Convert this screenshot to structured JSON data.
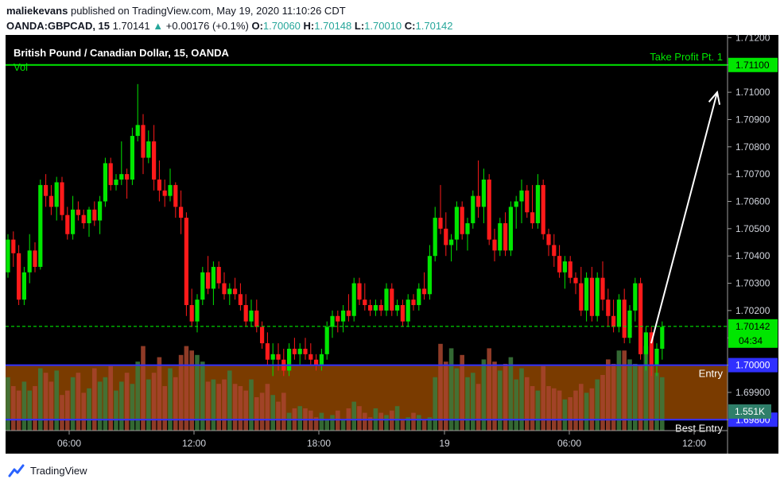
{
  "header": {
    "user": "maliekevans",
    "published_text": "published on TradingView.com, May 19, 2020 11:10:26 CDT",
    "symbol": "OANDA:GBPCAD, 15",
    "price": "1.70141",
    "change": "+0.00176 (+0.1%)",
    "o_label": "O:",
    "o_value": "1.70060",
    "h_label": "H:",
    "h_value": "1.70148",
    "l_label": "L:",
    "l_value": "1.70010",
    "c_label": "C:",
    "c_value": "1.70142"
  },
  "footer": {
    "brand": "TradingView"
  },
  "chart_data": {
    "type": "candlestick",
    "title": "British Pound / Canadian Dollar, 15, OANDA",
    "volume_label": "Vol",
    "x_ticks": [
      "06:00",
      "12:00",
      "18:00",
      "19",
      "06:00",
      "12:00"
    ],
    "y_ticks": [
      "1.71200",
      "1.71100",
      "1.71000",
      "1.70900",
      "1.70800",
      "1.70700",
      "1.70600",
      "1.70500",
      "1.70400",
      "1.70300",
      "1.70200",
      "1.70100",
      "1.70000",
      "1.69900",
      "1.69800"
    ],
    "ylim": [
      1.6976,
      1.7121
    ],
    "levels": [
      {
        "label": "Take Profit Pt. 1",
        "price": 1.711,
        "price_label": "1.71100",
        "color": "#00e600"
      },
      {
        "label": "Entry",
        "price": 1.7,
        "price_label": "1.70000",
        "color": "#3030ff"
      },
      {
        "label": "Best Entry",
        "price": 1.698,
        "price_label": "1.69800",
        "color": "#3030ff"
      }
    ],
    "current_price": {
      "value": 1.70142,
      "label": "1.70142",
      "countdown": "04:34",
      "color": "#00e600"
    },
    "volume_value_label": "1.551K",
    "zone_color": "#7a3b00",
    "up_color": "#00e600",
    "down_color": "#ff1a1a",
    "candles_ohlc": [
      [
        1.7034,
        1.7048,
        1.7032,
        1.7046
      ],
      [
        1.7046,
        1.7049,
        1.7036,
        1.7041
      ],
      [
        1.7041,
        1.7044,
        1.7022,
        1.7024
      ],
      [
        1.7024,
        1.7036,
        1.7022,
        1.7034
      ],
      [
        1.7034,
        1.7048,
        1.703,
        1.7042
      ],
      [
        1.7042,
        1.7045,
        1.7034,
        1.7036
      ],
      [
        1.7036,
        1.7068,
        1.7035,
        1.7066
      ],
      [
        1.7066,
        1.707,
        1.7058,
        1.7062
      ],
      [
        1.7062,
        1.7066,
        1.7055,
        1.7058
      ],
      [
        1.7058,
        1.7069,
        1.7053,
        1.7067
      ],
      [
        1.7067,
        1.7069,
        1.7053,
        1.7055
      ],
      [
        1.7055,
        1.7058,
        1.7046,
        1.7048
      ],
      [
        1.7048,
        1.7062,
        1.7046,
        1.7057
      ],
      [
        1.7057,
        1.706,
        1.7053,
        1.7055
      ],
      [
        1.7055,
        1.7057,
        1.705,
        1.7052
      ],
      [
        1.7052,
        1.7058,
        1.7047,
        1.7057
      ],
      [
        1.7057,
        1.706,
        1.7051,
        1.7053
      ],
      [
        1.7053,
        1.7062,
        1.7048,
        1.706
      ],
      [
        1.706,
        1.7076,
        1.7058,
        1.7074
      ],
      [
        1.7074,
        1.7076,
        1.7064,
        1.7066
      ],
      [
        1.7066,
        1.707,
        1.7064,
        1.7068
      ],
      [
        1.7068,
        1.7082,
        1.7066,
        1.707
      ],
      [
        1.707,
        1.7072,
        1.7061,
        1.7068
      ],
      [
        1.7068,
        1.7087,
        1.7066,
        1.7084
      ],
      [
        1.7084,
        1.7103,
        1.7082,
        1.7088
      ],
      [
        1.7088,
        1.7092,
        1.707,
        1.7076
      ],
      [
        1.7076,
        1.7086,
        1.7074,
        1.7082
      ],
      [
        1.7082,
        1.7088,
        1.7064,
        1.7068
      ],
      [
        1.7068,
        1.7075,
        1.706,
        1.7064
      ],
      [
        1.7064,
        1.7068,
        1.7058,
        1.7062
      ],
      [
        1.7062,
        1.7072,
        1.706,
        1.7066
      ],
      [
        1.7066,
        1.7067,
        1.7054,
        1.7058
      ],
      [
        1.7058,
        1.7064,
        1.7048,
        1.7054
      ],
      [
        1.7054,
        1.7056,
        1.7018,
        1.7022
      ],
      [
        1.7022,
        1.7028,
        1.7014,
        1.7016
      ],
      [
        1.7016,
        1.7026,
        1.7012,
        1.7024
      ],
      [
        1.7024,
        1.7036,
        1.7022,
        1.7034
      ],
      [
        1.7034,
        1.704,
        1.7026,
        1.7028
      ],
      [
        1.7028,
        1.7038,
        1.7022,
        1.7036
      ],
      [
        1.7036,
        1.7038,
        1.7028,
        1.703
      ],
      [
        1.703,
        1.7034,
        1.7024,
        1.7026
      ],
      [
        1.7026,
        1.703,
        1.7022,
        1.7028
      ],
      [
        1.7028,
        1.7032,
        1.7024,
        1.7026
      ],
      [
        1.7026,
        1.703,
        1.702,
        1.7022
      ],
      [
        1.7022,
        1.7026,
        1.7014,
        1.7016
      ],
      [
        1.7016,
        1.7024,
        1.7014,
        1.702
      ],
      [
        1.702,
        1.7024,
        1.7012,
        1.7014
      ],
      [
        1.7014,
        1.7016,
        1.7006,
        1.7008
      ],
      [
        1.7008,
        1.7012,
        1.7,
        1.7002
      ],
      [
        1.7002,
        1.7008,
        1.6996,
        1.7004
      ],
      [
        1.7004,
        1.7008,
        1.6998,
        1.7002
      ],
      [
        1.7002,
        1.7006,
        1.6996,
        1.6998
      ],
      [
        1.6998,
        1.7008,
        1.6996,
        1.7006
      ],
      [
        1.7006,
        1.701,
        1.7002,
        1.7004
      ],
      [
        1.7004,
        1.7008,
        1.7,
        1.7006
      ],
      [
        1.7006,
        1.701,
        1.7002,
        1.7004
      ],
      [
        1.7004,
        1.7008,
        1.7,
        1.7002
      ],
      [
        1.7002,
        1.7004,
        1.6998,
        1.7
      ],
      [
        1.7,
        1.7006,
        1.6998,
        1.7004
      ],
      [
        1.7004,
        1.7016,
        1.7002,
        1.7014
      ],
      [
        1.7014,
        1.702,
        1.701,
        1.7018
      ],
      [
        1.7018,
        1.702,
        1.7012,
        1.7016
      ],
      [
        1.7016,
        1.7022,
        1.7012,
        1.702
      ],
      [
        1.702,
        1.7026,
        1.7016,
        1.7018
      ],
      [
        1.7018,
        1.7032,
        1.7016,
        1.703
      ],
      [
        1.703,
        1.7032,
        1.7022,
        1.7024
      ],
      [
        1.7024,
        1.703,
        1.702,
        1.7022
      ],
      [
        1.7022,
        1.7024,
        1.7018,
        1.702
      ],
      [
        1.702,
        1.7024,
        1.7018,
        1.7022
      ],
      [
        1.7022,
        1.7024,
        1.7018,
        1.702
      ],
      [
        1.702,
        1.703,
        1.7018,
        1.7028
      ],
      [
        1.7028,
        1.703,
        1.7018,
        1.702
      ],
      [
        1.702,
        1.7024,
        1.7018,
        1.7022
      ],
      [
        1.7022,
        1.7024,
        1.7014,
        1.7016
      ],
      [
        1.7016,
        1.7026,
        1.7014,
        1.7024
      ],
      [
        1.7024,
        1.7026,
        1.702,
        1.7022
      ],
      [
        1.7022,
        1.703,
        1.702,
        1.7028
      ],
      [
        1.7028,
        1.7034,
        1.7024,
        1.7026
      ],
      [
        1.7026,
        1.7044,
        1.7024,
        1.704
      ],
      [
        1.704,
        1.7058,
        1.7038,
        1.7054
      ],
      [
        1.7054,
        1.7066,
        1.7048,
        1.705
      ],
      [
        1.705,
        1.7056,
        1.704,
        1.7044
      ],
      [
        1.7044,
        1.7048,
        1.7038,
        1.7046
      ],
      [
        1.7046,
        1.706,
        1.7042,
        1.7058
      ],
      [
        1.7058,
        1.706,
        1.7046,
        1.7048
      ],
      [
        1.7048,
        1.7054,
        1.7042,
        1.7052
      ],
      [
        1.7052,
        1.7064,
        1.705,
        1.7062
      ],
      [
        1.7062,
        1.7075,
        1.7054,
        1.7058
      ],
      [
        1.7058,
        1.7072,
        1.7052,
        1.7068
      ],
      [
        1.7068,
        1.707,
        1.7044,
        1.7046
      ],
      [
        1.7046,
        1.705,
        1.7038,
        1.7042
      ],
      [
        1.7042,
        1.7054,
        1.704,
        1.7052
      ],
      [
        1.7052,
        1.7056,
        1.704,
        1.7042
      ],
      [
        1.7042,
        1.706,
        1.704,
        1.7058
      ],
      [
        1.7058,
        1.7062,
        1.705,
        1.706
      ],
      [
        1.706,
        1.7068,
        1.7052,
        1.7064
      ],
      [
        1.7064,
        1.7066,
        1.7054,
        1.7056
      ],
      [
        1.7056,
        1.7066,
        1.705,
        1.7052
      ],
      [
        1.7052,
        1.707,
        1.705,
        1.7066
      ],
      [
        1.7066,
        1.7068,
        1.7046,
        1.7048
      ],
      [
        1.7048,
        1.705,
        1.704,
        1.7044
      ],
      [
        1.7044,
        1.7048,
        1.7036,
        1.704
      ],
      [
        1.704,
        1.7044,
        1.7032,
        1.7034
      ],
      [
        1.7034,
        1.704,
        1.7028,
        1.7038
      ],
      [
        1.7038,
        1.704,
        1.703,
        1.7032
      ],
      [
        1.7032,
        1.7034,
        1.7026,
        1.703
      ],
      [
        1.703,
        1.7036,
        1.7018,
        1.702
      ],
      [
        1.702,
        1.7034,
        1.7016,
        1.7032
      ],
      [
        1.7032,
        1.7036,
        1.7016,
        1.7018
      ],
      [
        1.7018,
        1.7034,
        1.7016,
        1.7032
      ],
      [
        1.7032,
        1.7038,
        1.702,
        1.7024
      ],
      [
        1.7024,
        1.7028,
        1.7014,
        1.7018
      ],
      [
        1.7018,
        1.7024,
        1.7012,
        1.7014
      ],
      [
        1.7014,
        1.7026,
        1.7012,
        1.7024
      ],
      [
        1.7024,
        1.7028,
        1.7008,
        1.701
      ],
      [
        1.701,
        1.7022,
        1.7008,
        1.702
      ],
      [
        1.702,
        1.7032,
        1.7016,
        1.703
      ],
      [
        1.703,
        1.7032,
        1.7002,
        1.7004
      ],
      [
        1.7004,
        1.7014,
        1.6998,
        1.7012
      ],
      [
        1.7012,
        1.7014,
        1.6996,
        1.7
      ],
      [
        1.7,
        1.7008,
        1.6996,
        1.7006
      ],
      [
        1.7006,
        1.7016,
        1.7002,
        1.7014
      ]
    ],
    "volumes": [
      48,
      40,
      36,
      44,
      36,
      40,
      56,
      52,
      44,
      54,
      32,
      36,
      48,
      52,
      34,
      38,
      56,
      44,
      48,
      58,
      36,
      44,
      52,
      42,
      62,
      76,
      46,
      52,
      66,
      40,
      56,
      48,
      68,
      76,
      72,
      68,
      62,
      44,
      46,
      42,
      46,
      54,
      42,
      40,
      36,
      46,
      30,
      34,
      42,
      32,
      26,
      34,
      16,
      20,
      22,
      20,
      18,
      12,
      16,
      10,
      14,
      18,
      10,
      20,
      26,
      22,
      16,
      12,
      20,
      16,
      14,
      18,
      22,
      10,
      12,
      16,
      14,
      10,
      12,
      48,
      78,
      62,
      74,
      56,
      68,
      48,
      52,
      42,
      64,
      74,
      62,
      54,
      60,
      66,
      46,
      56,
      48,
      40,
      36,
      58,
      40,
      38,
      36,
      28,
      30,
      36,
      42,
      34,
      38,
      46,
      50,
      64,
      60,
      72,
      72,
      64,
      60,
      58,
      76,
      58,
      52,
      48,
      40
    ]
  }
}
